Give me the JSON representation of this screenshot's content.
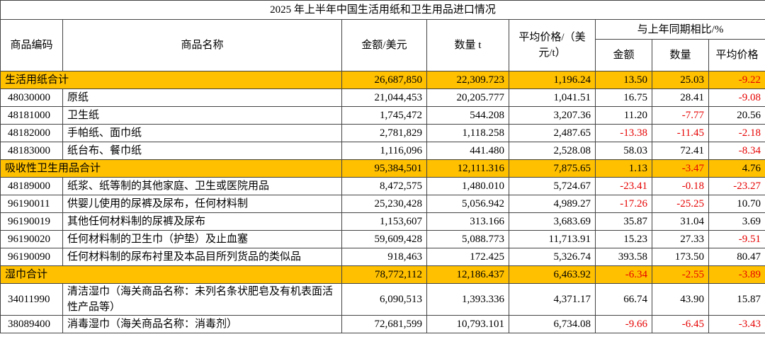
{
  "table": {
    "title": "2025 年上半年中国生活用纸和卫生用品进口情况",
    "header": {
      "code": "商品编码",
      "name": "商品名称",
      "amount": "金额/美元",
      "quantity": "数量 t",
      "price": "平均价格/（美元/t）",
      "yoy": "与上年同期相比/%",
      "yoy_amount": "金额",
      "yoy_quantity": "数量",
      "yoy_price": "平均价格"
    },
    "rows": [
      [
        "生活用纸合计",
        "26,687,850",
        "22,309.723",
        "1,196.24",
        "13.50",
        "25.03",
        "-9.22"
      ],
      [
        "48030000",
        "原纸",
        "21,044,453",
        "20,205.777",
        "1,041.51",
        "16.75",
        "28.41",
        "-9.08"
      ],
      [
        "48181000",
        "卫生纸",
        "1,745,472",
        "544.208",
        "3,207.36",
        "11.20",
        "-7.77",
        "20.56"
      ],
      [
        "48182000",
        "手帕纸、面巾纸",
        "2,781,829",
        "1,118.258",
        "2,487.65",
        "-13.38",
        "-11.45",
        "-2.18"
      ],
      [
        "48183000",
        "纸台布、餐巾纸",
        "1,116,096",
        "441.480",
        "2,528.08",
        "58.03",
        "72.41",
        "-8.34"
      ],
      [
        "吸收性卫生用品合计",
        "95,384,501",
        "12,111.316",
        "7,875.65",
        "1.13",
        "-3.47",
        "4.76"
      ],
      [
        "48189000",
        "纸浆、纸等制的其他家庭、卫生或医院用品",
        "8,472,575",
        "1,480.010",
        "5,724.67",
        "-23.41",
        "-0.18",
        "-23.27"
      ],
      [
        "96190011",
        "供婴儿使用的尿裤及尿布，任何材料制",
        "25,230,428",
        "5,056.942",
        "4,989.27",
        "-17.26",
        "-25.25",
        "10.70"
      ],
      [
        "96190019",
        "其他任何材料制的尿裤及尿布",
        "1,153,607",
        "313.166",
        "3,683.69",
        "35.87",
        "31.04",
        "3.69"
      ],
      [
        "96190020",
        "任何材料制的卫生巾（护垫）及止血塞",
        "59,609,428",
        "5,088.773",
        "11,713.91",
        "15.23",
        "27.33",
        "-9.51"
      ],
      [
        "96190090",
        "任何材料制的尿布衬里及本品目所列货品的类似品",
        "918,463",
        "172.425",
        "5,326.74",
        "393.58",
        "173.50",
        "80.47"
      ],
      [
        "湿巾合计",
        "78,772,112",
        "12,186.437",
        "6,463.92",
        "-6.34",
        "-2.55",
        "-3.89"
      ],
      [
        "34011990",
        "清洁湿巾（海关商品名称：未列名条状肥皂及有机表面活性产品等）",
        "6,090,513",
        "1,393.336",
        "4,371.17",
        "66.74",
        "43.90",
        "15.87"
      ],
      [
        "38089400",
        "消毒湿巾（海关商品名称：消毒剂）",
        "72,681,599",
        "10,793.101",
        "6,734.08",
        "-9.66",
        "-6.45",
        "-3.43"
      ]
    ]
  }
}
